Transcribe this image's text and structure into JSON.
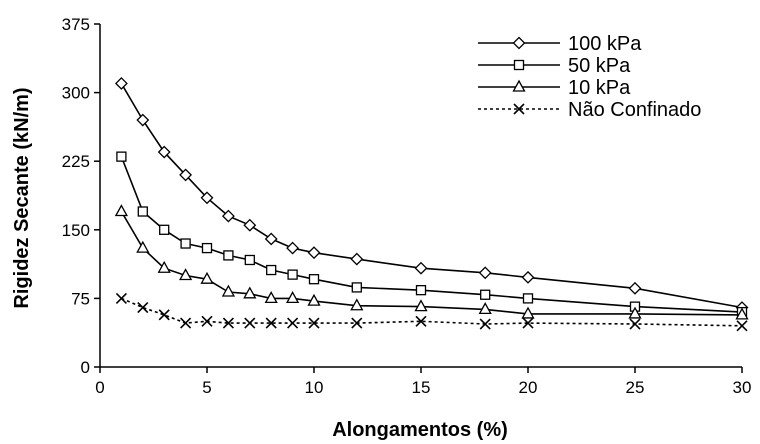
{
  "chart_data": {
    "type": "line",
    "xlabel": "Alongamentos (%)",
    "ylabel": "Rigidez Secante (kN/m)",
    "xlim": [
      0,
      30
    ],
    "ylim": [
      0,
      375
    ],
    "xticks": [
      0,
      5,
      10,
      15,
      20,
      25,
      30
    ],
    "xtick_labels": [
      "0",
      "5",
      "10",
      "15",
      "20",
      "25",
      "30"
    ],
    "yticks": [
      0,
      75,
      150,
      225,
      300,
      375
    ],
    "ytick_labels": [
      "0",
      "75",
      "150",
      "225",
      "300",
      "375"
    ],
    "grid": false,
    "legend_position": "top-right",
    "series": [
      {
        "name": "100 kPa",
        "marker": "diamond",
        "line": "solid",
        "x": [
          1,
          2,
          3,
          4,
          5,
          6,
          7,
          8,
          9,
          10,
          12,
          15,
          18,
          20,
          25,
          30
        ],
        "y": [
          310,
          270,
          235,
          210,
          185,
          165,
          155,
          140,
          130,
          125,
          118,
          108,
          103,
          98,
          86,
          65
        ]
      },
      {
        "name": "50 kPa",
        "marker": "square",
        "line": "solid",
        "x": [
          1,
          2,
          3,
          4,
          5,
          6,
          7,
          8,
          9,
          10,
          12,
          15,
          18,
          20,
          25,
          30
        ],
        "y": [
          230,
          170,
          150,
          135,
          130,
          122,
          117,
          106,
          101,
          96,
          87,
          84,
          79,
          75,
          66,
          60
        ]
      },
      {
        "name": "10 kPa",
        "marker": "triangle",
        "line": "solid",
        "x": [
          1,
          2,
          3,
          4,
          5,
          6,
          7,
          8,
          9,
          10,
          12,
          15,
          18,
          20,
          25,
          30
        ],
        "y": [
          170,
          130,
          108,
          100,
          96,
          82,
          80,
          75,
          75,
          72,
          67,
          66,
          63,
          58,
          58,
          57
        ]
      },
      {
        "name": "Não Confinado",
        "marker": "x",
        "line": "dotted",
        "x": [
          1,
          2,
          3,
          4,
          5,
          6,
          7,
          8,
          9,
          10,
          12,
          15,
          18,
          20,
          25,
          30
        ],
        "y": [
          75,
          65,
          57,
          48,
          50,
          48,
          48,
          48,
          48,
          48,
          48,
          50,
          47,
          48,
          47,
          45
        ]
      }
    ]
  }
}
